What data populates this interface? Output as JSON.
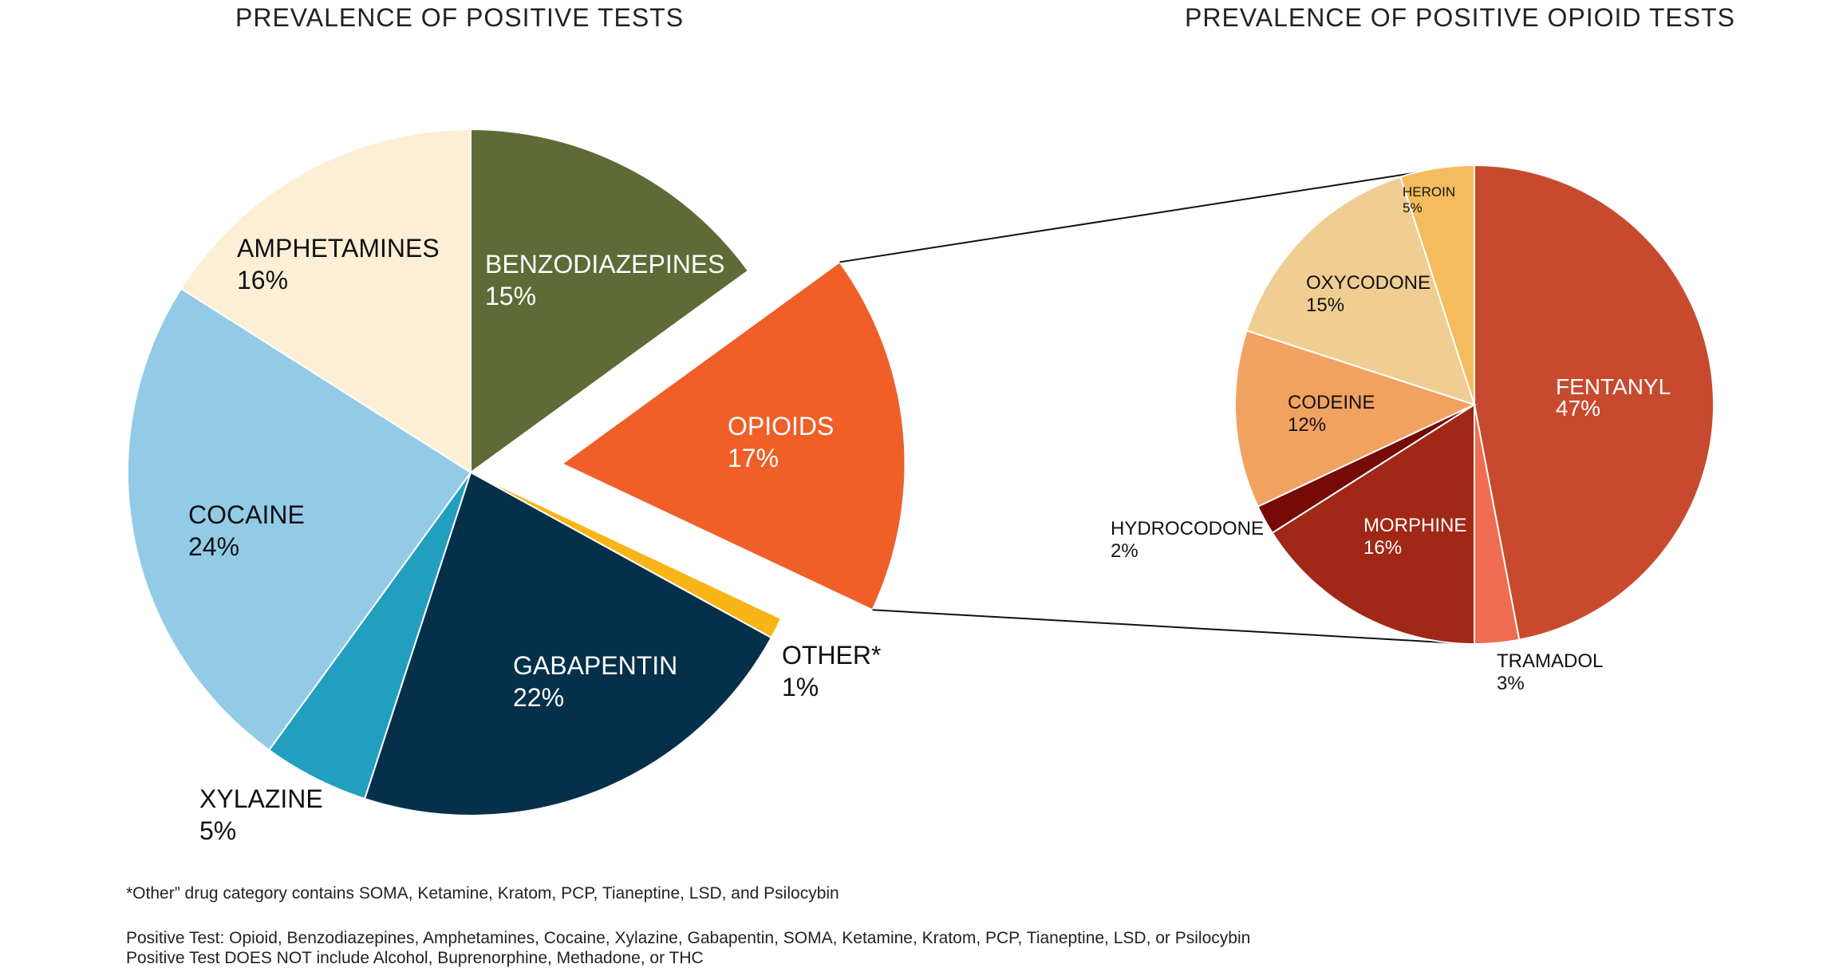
{
  "chart_data": [
    {
      "type": "pie",
      "title": "PREVALENCE OF POSITIVE TESTS",
      "slices": [
        {
          "label": "BENZODIAZEPINES",
          "value": 15,
          "value_label": "15%",
          "color": "#5f6b37",
          "label_color": "#ffffff"
        },
        {
          "label": "OPIOIDS",
          "value": 17,
          "value_label": "17%",
          "color": "#ef5f27",
          "label_color": "#ffffff",
          "exploded": true
        },
        {
          "label": "OTHER*",
          "value": 1,
          "value_label": "1%",
          "color": "#f9b417",
          "label_color": "#111111"
        },
        {
          "label": "GABAPENTIN",
          "value": 22,
          "value_label": "22%",
          "color": "#05304a",
          "label_color": "#ffffff"
        },
        {
          "label": "XYLAZINE",
          "value": 5,
          "value_label": "5%",
          "color": "#229fbf",
          "label_color": "#111111"
        },
        {
          "label": "COCAINE",
          "value": 24,
          "value_label": "24%",
          "color": "#93cbe7",
          "label_color": "#111111"
        },
        {
          "label": "AMPHETAMINES",
          "value": 16,
          "value_label": "16%",
          "color": "#fdefd6",
          "label_color": "#111111"
        }
      ]
    },
    {
      "type": "pie",
      "title": "PREVALENCE OF POSITIVE OPIOID TESTS",
      "slices": [
        {
          "label": "FENTANYL",
          "value": 47,
          "value_label": "47%",
          "color": "#c84a2e",
          "label_color": "#ffffff"
        },
        {
          "label": "TRAMADOL",
          "value": 3,
          "value_label": "3%",
          "color": "#ef6b52",
          "label_color": "#111111"
        },
        {
          "label": "MORPHINE",
          "value": 16,
          "value_label": "16%",
          "color": "#a12716",
          "label_color": "#ffffff"
        },
        {
          "label": "HYDROCODONE",
          "value": 2,
          "value_label": "2%",
          "color": "#760a07",
          "label_color": "#111111"
        },
        {
          "label": "CODEINE",
          "value": 12,
          "value_label": "12%",
          "color": "#f1a261",
          "label_color": "#111111"
        },
        {
          "label": "OXYCODONE",
          "value": 15,
          "value_label": "15%",
          "color": "#f0cd92",
          "label_color": "#111111"
        },
        {
          "label": "HEROIN",
          "value": 5,
          "value_label": "5%",
          "color": "#f4bc5d",
          "label_color": "#111111"
        }
      ]
    }
  ],
  "notes": {
    "other": "*Other” drug category contains SOMA, Ketamine, Kratom, PCP, Tianeptine, LSD, and Psilocybin",
    "positive_test": "Positive Test: Opioid, Benzodiazepines, Amphetamines, Cocaine, Xylazine, Gabapentin, SOMA, Ketamine, Kratom, PCP, Tianeptine, LSD, or Psilocybin",
    "not_included": "Positive Test DOES NOT include Alcohol, Buprenorphine, Methadone, or THC"
  }
}
